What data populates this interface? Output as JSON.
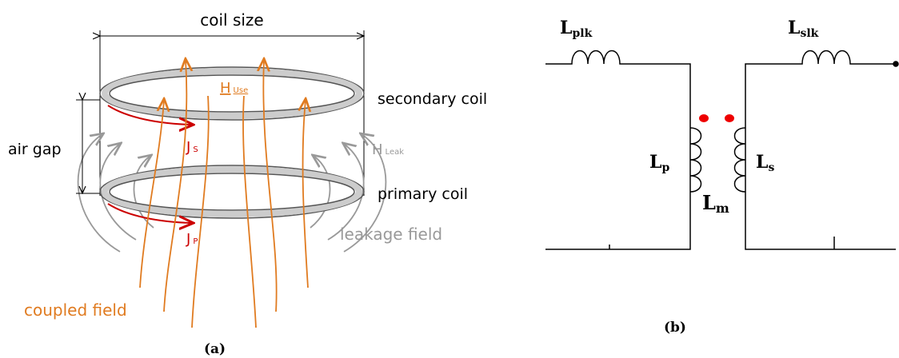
{
  "panel_a": {
    "coil_size": "coil size",
    "secondary_coil": "secondary coil",
    "air_gap": "air gap",
    "primary_coil": "primary coil",
    "h_use": {
      "symbol": "H",
      "sub": "Use"
    },
    "j_s": {
      "symbol": "J",
      "sub": "S"
    },
    "h_leak": {
      "symbol": "H",
      "sub": "Leak"
    },
    "j_p": {
      "symbol": "J",
      "sub": "P"
    },
    "leakage_field": "leakage field",
    "coupled_field": "coupled field",
    "caption": "(a)"
  },
  "panel_b": {
    "l_plk": {
      "symbol": "L",
      "sub": "plk"
    },
    "l_slk": {
      "symbol": "L",
      "sub": "slk"
    },
    "l_p": {
      "symbol": "L",
      "sub": "p"
    },
    "l_s": {
      "symbol": "L",
      "sub": "s"
    },
    "l_m": {
      "symbol": "L",
      "sub": "m"
    },
    "caption": "(b)"
  }
}
